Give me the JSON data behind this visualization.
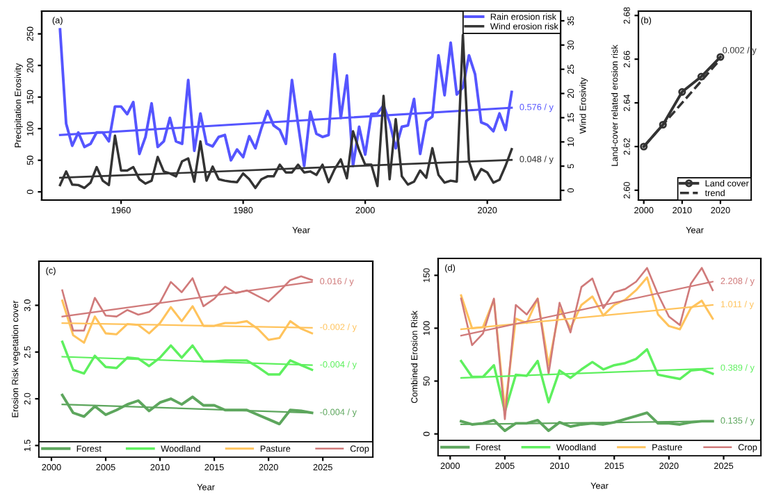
{
  "chart_data": [
    {
      "type": "line",
      "title": "(a)",
      "xlabel": "Year",
      "ylabel": "Precipitation Erosivity",
      "y2label": "Wind Erosivity",
      "xlim": [
        1947,
        2032
      ],
      "xticks": [
        1960,
        1980,
        2000,
        2020
      ],
      "ylim": [
        -13,
        286
      ],
      "yticks": [
        0,
        50,
        100,
        150,
        200,
        250
      ],
      "y2lim": [
        -2,
        37
      ],
      "y2ticks": [
        0,
        5,
        10,
        15,
        20,
        25,
        30,
        35
      ],
      "legend": "top right",
      "x": [
        1950,
        1951,
        1952,
        1953,
        1954,
        1955,
        1956,
        1957,
        1958,
        1959,
        1960,
        1961,
        1962,
        1963,
        1964,
        1965,
        1966,
        1967,
        1968,
        1969,
        1970,
        1971,
        1972,
        1973,
        1974,
        1975,
        1976,
        1977,
        1978,
        1979,
        1980,
        1981,
        1982,
        1983,
        1984,
        1985,
        1986,
        1987,
        1988,
        1989,
        1990,
        1991,
        1992,
        1993,
        1994,
        1995,
        1996,
        1997,
        1998,
        1999,
        2000,
        2001,
        2002,
        2003,
        2004,
        2005,
        2006,
        2007,
        2008,
        2009,
        2010,
        2011,
        2012,
        2013,
        2014,
        2015,
        2016,
        2017,
        2018,
        2019,
        2020,
        2021,
        2022,
        2023,
        2024
      ],
      "series": [
        {
          "name": "Rain erosion risk",
          "color": "#5555ff",
          "values": [
            257,
            108,
            73,
            94,
            71,
            76,
            94,
            94,
            80,
            135,
            135,
            123,
            142,
            60,
            87,
            140,
            71,
            80,
            117,
            80,
            76,
            177,
            65,
            124,
            76,
            72,
            87,
            90,
            50,
            67,
            55,
            88,
            69,
            101,
            128,
            105,
            98,
            76,
            177,
            107,
            41,
            127,
            92,
            87,
            90,
            218,
            117,
            184,
            41,
            103,
            59,
            123,
            124,
            137,
            110,
            69,
            103,
            105,
            147,
            60,
            112,
            119,
            216,
            153,
            236,
            154,
            165,
            216,
            186,
            110,
            106,
            96,
            124,
            98,
            158
          ]
        },
        {
          "name": "Wind erosion risk",
          "color": "#333333",
          "axis": "y2",
          "values": [
            1.1,
            3.9,
            1.2,
            1.1,
            0.5,
            1.6,
            4.8,
            2.0,
            1.1,
            11.3,
            4.1,
            4.1,
            4.8,
            2.3,
            1.4,
            2.0,
            6.9,
            3.9,
            3.5,
            2.9,
            6.0,
            6.6,
            1.8,
            10.1,
            2.0,
            4.9,
            2.3,
            2.0,
            1.8,
            1.7,
            3.5,
            2.3,
            0.5,
            2.3,
            2.9,
            2.9,
            5.3,
            3.7,
            3.7,
            5.3,
            3.7,
            3.9,
            3.2,
            5.3,
            1.7,
            4.4,
            6.4,
            2.5,
            12.2,
            8.3,
            5.3,
            5.3,
            0.9,
            19.5,
            2.3,
            14.7,
            2.9,
            1.2,
            1.8,
            4.1,
            2.6,
            8.7,
            3.2,
            1.6,
            2.0,
            1.8,
            32.1,
            6.0,
            2.2,
            4.4,
            3.7,
            1.6,
            2.2,
            5.1,
            8.5
          ]
        },
        {
          "name": "0.576 / y",
          "color": "#5555ff",
          "x": [
            1950,
            2024
          ],
          "values": [
            90,
            133
          ]
        },
        {
          "name": "0.048 / y",
          "color": "#333333",
          "axis": "y2",
          "x": [
            1950,
            2024
          ],
          "values": [
            2.6,
            6.3
          ]
        }
      ]
    },
    {
      "type": "line",
      "title": "(b)",
      "xlabel": "Year",
      "ylabel": "Land-cover related erosion risk",
      "xlim": [
        1998.6,
        2028
      ],
      "xticks": [
        2000,
        2010,
        2020
      ],
      "ylim": [
        2.5955,
        2.682
      ],
      "yticks": [
        {
          "value": 2.6,
          "label": "2.60"
        },
        {
          "value": 2.62,
          "label": "2.62"
        },
        {
          "value": 2.64,
          "label": "2.64"
        },
        {
          "value": 2.66,
          "label": "2.66"
        },
        {
          "value": 2.68,
          "label": "2.68"
        }
      ],
      "legend": "bottom right",
      "series": [
        {
          "name": "Land cover",
          "color": "#333333",
          "marker": "circle",
          "x": [
            2000,
            2005,
            2010,
            2015,
            2020
          ],
          "values": [
            2.62,
            2.63,
            2.645,
            2.652,
            2.661
          ]
        },
        {
          "name": "trend",
          "color": "#333333",
          "line_style": "dashed",
          "x": [
            2000,
            2020
          ],
          "values": [
            2.62,
            2.66
          ]
        }
      ],
      "annotations": [
        {
          "text": "0.002 / y",
          "x": 2020,
          "y": 2.661
        }
      ]
    },
    {
      "type": "line",
      "title": "(c)",
      "xlabel": "Year",
      "ylabel": "Erosion Risk vegetation cover",
      "xlim": [
        1998.85,
        2029.6
      ],
      "xticks": [
        2000,
        2005,
        2010,
        2015,
        2020,
        2025
      ],
      "ylim": [
        1.376,
        3.472
      ],
      "yticks": [
        {
          "value": 1.5,
          "label": "1.5"
        },
        {
          "value": 2,
          "label": "2.0"
        },
        {
          "value": 2.5,
          "label": "2.5"
        },
        {
          "value": 3,
          "label": "3.0"
        }
      ],
      "legend": "bottom",
      "x": [
        2001,
        2002,
        2003,
        2004,
        2005,
        2006,
        2007,
        2008,
        2009,
        2010,
        2011,
        2012,
        2013,
        2014,
        2015,
        2016,
        2017,
        2018,
        2019,
        2020,
        2021,
        2022,
        2023,
        2024
      ],
      "series": [
        {
          "name": "Forest",
          "color": "#5da65d",
          "values": [
            2.04,
            1.85,
            1.81,
            1.92,
            1.83,
            1.88,
            1.94,
            1.98,
            1.87,
            1.96,
            2.0,
            1.94,
            2.02,
            1.93,
            1.93,
            1.88,
            1.88,
            1.88,
            1.83,
            1.78,
            1.73,
            1.88,
            1.87,
            1.85
          ]
        },
        {
          "name": "Woodland",
          "color": "#5ef05e",
          "values": [
            2.61,
            2.31,
            2.27,
            2.46,
            2.34,
            2.33,
            2.44,
            2.43,
            2.35,
            2.44,
            2.57,
            2.44,
            2.57,
            2.4,
            2.4,
            2.41,
            2.41,
            2.41,
            2.34,
            2.26,
            2.26,
            2.41,
            2.36,
            2.31
          ]
        },
        {
          "name": "Pasture",
          "color": "#ffc35c",
          "values": [
            3.05,
            2.68,
            2.6,
            2.88,
            2.7,
            2.69,
            2.8,
            2.79,
            2.7,
            2.81,
            2.98,
            2.83,
            2.99,
            2.78,
            2.78,
            2.81,
            2.81,
            2.83,
            2.75,
            2.63,
            2.65,
            2.83,
            2.75,
            2.7
          ]
        },
        {
          "name": "Crop",
          "color": "#d07a7a",
          "values": [
            3.16,
            2.73,
            2.73,
            3.08,
            2.89,
            2.88,
            2.95,
            2.9,
            2.93,
            3.03,
            3.25,
            3.14,
            3.29,
            2.99,
            3.07,
            3.2,
            3.13,
            3.16,
            3.1,
            3.04,
            3.15,
            3.27,
            3.31,
            3.27
          ]
        },
        {
          "name": "-0.004 / y",
          "color": "#5da65d",
          "x": [
            2001,
            2024
          ],
          "values": [
            1.94,
            1.85
          ]
        },
        {
          "name": "-0.004 / y",
          "color": "#5ef05e",
          "x": [
            2001,
            2024
          ],
          "values": [
            2.45,
            2.36
          ]
        },
        {
          "name": "-0.002 / y",
          "color": "#ffc35c",
          "x": [
            2001,
            2024
          ],
          "values": [
            2.81,
            2.76
          ]
        },
        {
          "name": "0.016 / y",
          "color": "#d07a7a",
          "x": [
            2001,
            2024
          ],
          "values": [
            2.88,
            3.25
          ]
        }
      ]
    },
    {
      "type": "line",
      "title": "(d)",
      "xlabel": "Year",
      "ylabel": "Combined Erosion Risk",
      "xlim": [
        1998.9,
        2028.4
      ],
      "xticks": [
        2000,
        2005,
        2010,
        2015,
        2020,
        2025
      ],
      "ylim": [
        -20.6,
        166
      ],
      "yticks": [
        0,
        50,
        100,
        150
      ],
      "legend": "bottom",
      "x": [
        2001,
        2002,
        2003,
        2004,
        2005,
        2006,
        2007,
        2008,
        2009,
        2010,
        2011,
        2012,
        2013,
        2014,
        2015,
        2016,
        2017,
        2018,
        2019,
        2020,
        2021,
        2022,
        2023,
        2024
      ],
      "series": [
        {
          "name": "Forest",
          "color": "#5da65d",
          "values": [
            12,
            9,
            10,
            13,
            3,
            10,
            10,
            13,
            3,
            11,
            7,
            9,
            10,
            9,
            11,
            14,
            17,
            20,
            10,
            10,
            9,
            11,
            12,
            12
          ]
        },
        {
          "name": "Woodland",
          "color": "#5ef05e",
          "values": [
            69,
            54,
            54,
            65,
            21,
            56,
            55,
            69,
            30,
            60,
            53,
            61,
            68,
            61,
            65,
            67,
            71,
            80,
            56,
            54,
            52,
            60,
            61,
            57
          ]
        },
        {
          "name": "Pasture",
          "color": "#ffc35c",
          "values": [
            131,
            100,
            101,
            127,
            23,
            109,
            105,
            128,
            65,
            118,
            100,
            122,
            130,
            112,
            122,
            127,
            136,
            148,
            113,
            102,
            99,
            119,
            126,
            109
          ]
        },
        {
          "name": "Crop",
          "color": "#d07a7a",
          "values": [
            128,
            84,
            95,
            128,
            14,
            122,
            113,
            128,
            57,
            124,
            96,
            139,
            147,
            119,
            134,
            137,
            144,
            157,
            132,
            111,
            103,
            142,
            157,
            136
          ]
        },
        {
          "name": "0.135 / y",
          "color": "#5da65d",
          "x": [
            2001,
            2024
          ],
          "values": [
            9,
            12
          ]
        },
        {
          "name": "0.389 / y",
          "color": "#5ef05e",
          "x": [
            2001,
            2024
          ],
          "values": [
            53,
            62
          ]
        },
        {
          "name": "1.011 / y",
          "color": "#ffc35c",
          "x": [
            2001,
            2024
          ],
          "values": [
            99,
            122
          ]
        },
        {
          "name": "2.208 / y",
          "color": "#d07a7a",
          "x": [
            2001,
            2024
          ],
          "values": [
            93,
            144
          ]
        }
      ]
    }
  ]
}
